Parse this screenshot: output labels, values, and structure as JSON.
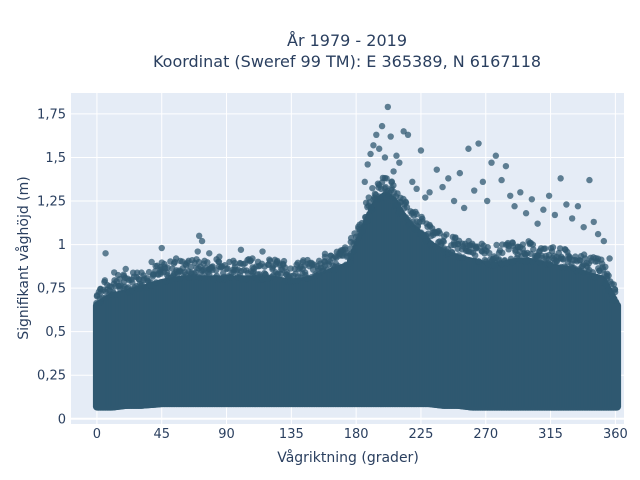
{
  "chart_data": {
    "type": "scatter",
    "title_lines": [
      "År 1979 - 2019",
      "Koordinat (Sweref 99 TM): E 365389, N 6167118"
    ],
    "xlabel": "Vågriktning (grader)",
    "ylabel": "Signifikant våghöjd (m)",
    "xlim": [
      -18,
      366
    ],
    "ylim": [
      -0.03,
      1.87
    ],
    "x_ticks": [
      0,
      45,
      90,
      135,
      180,
      225,
      270,
      315,
      360
    ],
    "x_tick_labels": [
      "0",
      "45",
      "90",
      "135",
      "180",
      "225",
      "270",
      "315",
      "360"
    ],
    "y_ticks": [
      0,
      0.25,
      0.5,
      0.75,
      1,
      1.25,
      1.5,
      1.75
    ],
    "y_tick_labels": [
      "0",
      "0,25",
      "0,5",
      "0,75",
      "1",
      "1,25",
      "1,5",
      "1,75"
    ],
    "grid": true,
    "marker_color": "#2f5870",
    "plot_bg": "#e5ecf6",
    "envelope": {
      "direction": [
        0,
        10,
        20,
        30,
        45,
        60,
        75,
        90,
        105,
        120,
        135,
        150,
        165,
        175,
        180,
        185,
        190,
        195,
        200,
        205,
        210,
        215,
        220,
        225,
        230,
        240,
        250,
        260,
        270,
        280,
        290,
        300,
        310,
        320,
        330,
        340,
        350,
        360
      ],
      "min_height": [
        0.07,
        0.07,
        0.08,
        0.08,
        0.09,
        0.09,
        0.09,
        0.09,
        0.09,
        0.09,
        0.09,
        0.09,
        0.09,
        0.09,
        0.09,
        0.09,
        0.09,
        0.09,
        0.09,
        0.09,
        0.09,
        0.09,
        0.09,
        0.09,
        0.09,
        0.08,
        0.08,
        0.07,
        0.07,
        0.07,
        0.07,
        0.07,
        0.07,
        0.07,
        0.07,
        0.07,
        0.07,
        0.07
      ],
      "max_height": [
        0.65,
        0.7,
        0.72,
        0.74,
        0.78,
        0.8,
        0.8,
        0.8,
        0.8,
        0.8,
        0.78,
        0.8,
        0.85,
        0.88,
        0.98,
        1.08,
        1.18,
        1.25,
        1.28,
        1.25,
        1.18,
        1.12,
        1.08,
        1.05,
        1.0,
        0.95,
        0.92,
        0.9,
        0.88,
        0.88,
        0.9,
        0.9,
        0.88,
        0.86,
        0.85,
        0.82,
        0.8,
        0.65
      ]
    },
    "outliers": [
      [
        6,
        0.95
      ],
      [
        12,
        0.84
      ],
      [
        20,
        0.86
      ],
      [
        38,
        0.9
      ],
      [
        45,
        0.98
      ],
      [
        55,
        0.92
      ],
      [
        62,
        0.88
      ],
      [
        70,
        0.96
      ],
      [
        71,
        1.05
      ],
      [
        73,
        1.02
      ],
      [
        78,
        0.95
      ],
      [
        85,
        0.93
      ],
      [
        92,
        0.9
      ],
      [
        100,
        0.97
      ],
      [
        108,
        0.92
      ],
      [
        115,
        0.96
      ],
      [
        125,
        0.9
      ],
      [
        140,
        0.86
      ],
      [
        158,
        0.9
      ],
      [
        170,
        0.94
      ],
      [
        186,
        1.36
      ],
      [
        188,
        1.46
      ],
      [
        190,
        1.52
      ],
      [
        192,
        1.57
      ],
      [
        194,
        1.63
      ],
      [
        196,
        1.55
      ],
      [
        198,
        1.68
      ],
      [
        200,
        1.5
      ],
      [
        202,
        1.79
      ],
      [
        204,
        1.62
      ],
      [
        206,
        1.42
      ],
      [
        208,
        1.51
      ],
      [
        210,
        1.47
      ],
      [
        213,
        1.65
      ],
      [
        216,
        1.63
      ],
      [
        219,
        1.36
      ],
      [
        222,
        1.32
      ],
      [
        225,
        1.54
      ],
      [
        228,
        1.27
      ],
      [
        231,
        1.3
      ],
      [
        236,
        1.43
      ],
      [
        240,
        1.33
      ],
      [
        244,
        1.38
      ],
      [
        248,
        1.25
      ],
      [
        252,
        1.41
      ],
      [
        255,
        1.21
      ],
      [
        258,
        1.55
      ],
      [
        262,
        1.31
      ],
      [
        265,
        1.58
      ],
      [
        268,
        1.36
      ],
      [
        271,
        1.25
      ],
      [
        274,
        1.47
      ],
      [
        277,
        1.51
      ],
      [
        281,
        1.37
      ],
      [
        284,
        1.45
      ],
      [
        287,
        1.28
      ],
      [
        290,
        1.22
      ],
      [
        294,
        1.3
      ],
      [
        298,
        1.18
      ],
      [
        302,
        1.26
      ],
      [
        306,
        1.12
      ],
      [
        310,
        1.2
      ],
      [
        314,
        1.28
      ],
      [
        318,
        1.17
      ],
      [
        322,
        1.38
      ],
      [
        326,
        1.23
      ],
      [
        330,
        1.15
      ],
      [
        334,
        1.22
      ],
      [
        338,
        1.1
      ],
      [
        342,
        1.37
      ],
      [
        345,
        1.13
      ],
      [
        348,
        1.06
      ],
      [
        352,
        1.02
      ],
      [
        356,
        0.92
      ]
    ]
  }
}
